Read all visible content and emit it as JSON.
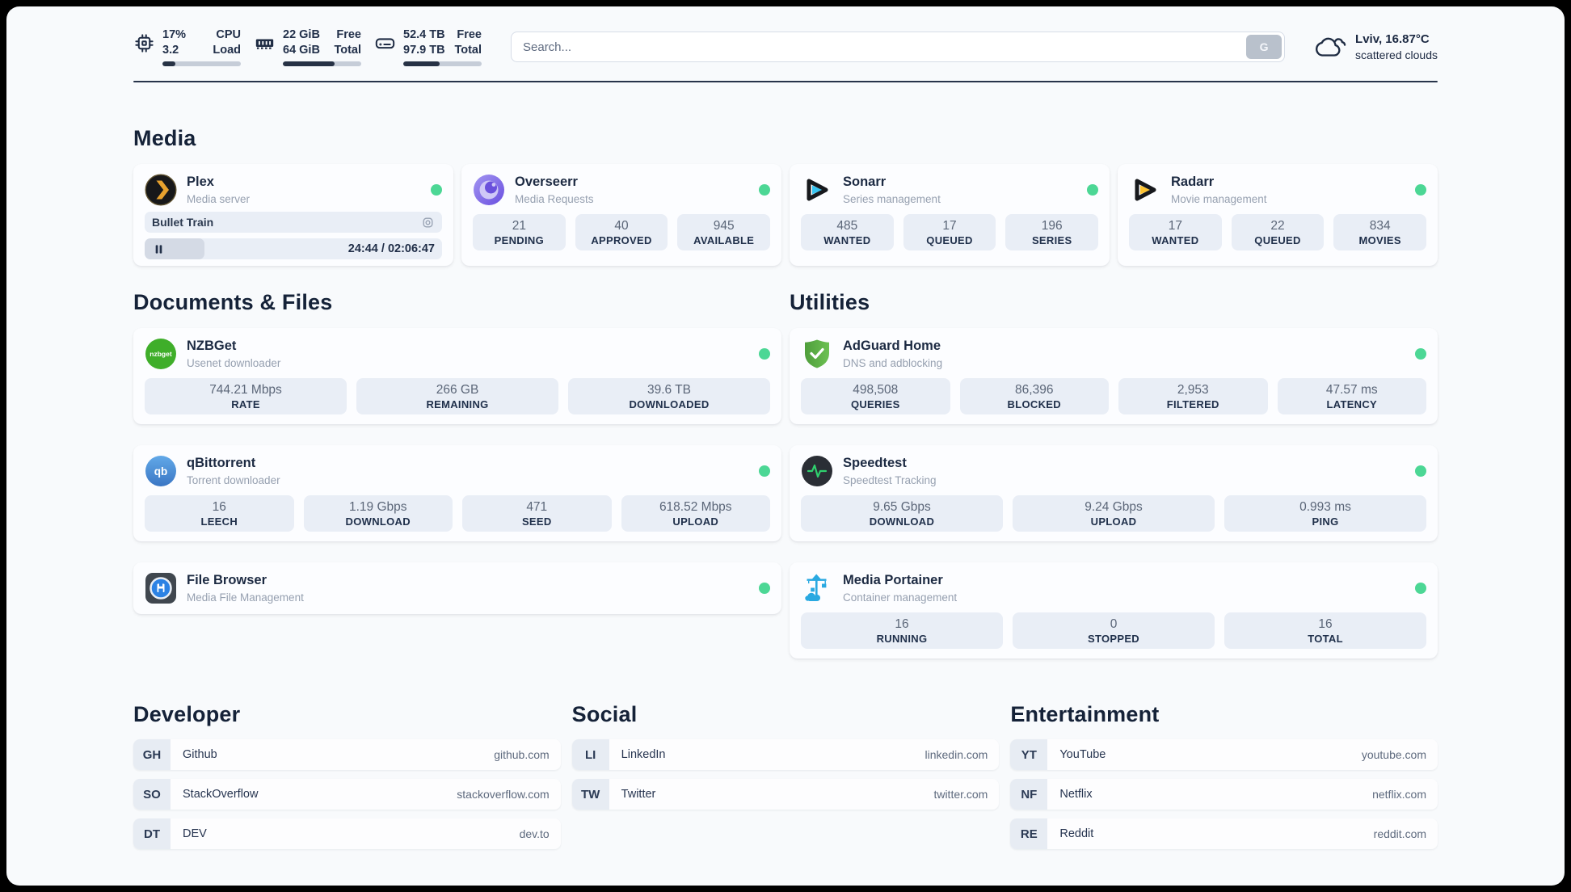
{
  "header": {
    "metrics": [
      {
        "name": "cpu",
        "value_top": "17%",
        "value_bottom": "3.2",
        "label_top": "CPU",
        "label_bottom": "Load",
        "progress_pct": 17
      },
      {
        "name": "memory",
        "value_top": "22 GiB",
        "value_bottom": "64 GiB",
        "label_top": "Free",
        "label_bottom": "Total",
        "progress_pct": 66
      },
      {
        "name": "disk",
        "value_top": "52.4 TB",
        "value_bottom": "97.9 TB",
        "label_top": "Free",
        "label_bottom": "Total",
        "progress_pct": 46
      }
    ],
    "search": {
      "placeholder": "Search...",
      "engine_label": "G"
    },
    "weather": {
      "location": "Lviv, 16.87°C",
      "condition": "scattered clouds"
    }
  },
  "sections": {
    "media": {
      "title": "Media",
      "plex": {
        "name": "Plex",
        "desc": "Media server",
        "now_playing": "Bullet Train",
        "time_display": "24:44 / 02:06:47",
        "progress_pct": 20
      },
      "apps": [
        {
          "name": "Overseerr",
          "desc": "Media Requests",
          "stats": [
            {
              "value": "21",
              "label": "PENDING"
            },
            {
              "value": "40",
              "label": "APPROVED"
            },
            {
              "value": "945",
              "label": "AVAILABLE"
            }
          ]
        },
        {
          "name": "Sonarr",
          "desc": "Series management",
          "stats": [
            {
              "value": "485",
              "label": "WANTED"
            },
            {
              "value": "17",
              "label": "QUEUED"
            },
            {
              "value": "196",
              "label": "SERIES"
            }
          ]
        },
        {
          "name": "Radarr",
          "desc": "Movie management",
          "stats": [
            {
              "value": "17",
              "label": "WANTED"
            },
            {
              "value": "22",
              "label": "QUEUED"
            },
            {
              "value": "834",
              "label": "MOVIES"
            }
          ]
        }
      ]
    },
    "documents": {
      "title": "Documents & Files",
      "apps": [
        {
          "name": "NZBGet",
          "desc": "Usenet downloader",
          "stats": [
            {
              "value": "744.21 Mbps",
              "label": "RATE"
            },
            {
              "value": "266 GB",
              "label": "REMAINING"
            },
            {
              "value": "39.6 TB",
              "label": "DOWNLOADED"
            }
          ]
        },
        {
          "name": "qBittorrent",
          "desc": "Torrent downloader",
          "stats": [
            {
              "value": "16",
              "label": "LEECH"
            },
            {
              "value": "1.19 Gbps",
              "label": "DOWNLOAD"
            },
            {
              "value": "471",
              "label": "SEED"
            },
            {
              "value": "618.52 Mbps",
              "label": "UPLOAD"
            }
          ]
        },
        {
          "name": "File Browser",
          "desc": "Media File Management",
          "stats": []
        }
      ]
    },
    "utilities": {
      "title": "Utilities",
      "apps": [
        {
          "name": "AdGuard Home",
          "desc": "DNS and adblocking",
          "stats": [
            {
              "value": "498,508",
              "label": "QUERIES"
            },
            {
              "value": "86,396",
              "label": "BLOCKED"
            },
            {
              "value": "2,953",
              "label": "FILTERED"
            },
            {
              "value": "47.57 ms",
              "label": "LATENCY"
            }
          ]
        },
        {
          "name": "Speedtest",
          "desc": "Speedtest Tracking",
          "stats": [
            {
              "value": "9.65 Gbps",
              "label": "DOWNLOAD"
            },
            {
              "value": "9.24 Gbps",
              "label": "UPLOAD"
            },
            {
              "value": "0.993 ms",
              "label": "PING"
            }
          ]
        },
        {
          "name": "Media Portainer",
          "desc": "Container management",
          "stats": [
            {
              "value": "16",
              "label": "RUNNING"
            },
            {
              "value": "0",
              "label": "STOPPED"
            },
            {
              "value": "16",
              "label": "TOTAL"
            }
          ]
        }
      ]
    },
    "bookmarks": [
      {
        "title": "Developer",
        "items": [
          {
            "abbr": "GH",
            "name": "Github",
            "url": "github.com"
          },
          {
            "abbr": "SO",
            "name": "StackOverflow",
            "url": "stackoverflow.com"
          },
          {
            "abbr": "DT",
            "name": "DEV",
            "url": "dev.to"
          }
        ]
      },
      {
        "title": "Social",
        "items": [
          {
            "abbr": "LI",
            "name": "LinkedIn",
            "url": "linkedin.com"
          },
          {
            "abbr": "TW",
            "name": "Twitter",
            "url": "twitter.com"
          }
        ]
      },
      {
        "title": "Entertainment",
        "items": [
          {
            "abbr": "YT",
            "name": "YouTube",
            "url": "youtube.com"
          },
          {
            "abbr": "NF",
            "name": "Netflix",
            "url": "netflix.com"
          },
          {
            "abbr": "RE",
            "name": "Reddit",
            "url": "reddit.com"
          }
        ]
      }
    ]
  },
  "colors": {
    "status_online": "#4cd795",
    "progress_fill": "#273245",
    "plex": "#e8a22e",
    "overseerr": "#6a50dc",
    "sonarr": "#38c5f1",
    "radarr": "#fdc330",
    "nzbget": "#3fae2a",
    "qbittorrent": "#3d7fc9",
    "adguard": "#5cb54a",
    "speedtest_pulse": "#2fd16e",
    "portainer": "#29a9e1",
    "filebrowser": "#2c82e4"
  }
}
